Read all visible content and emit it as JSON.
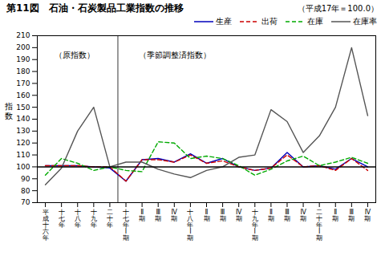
{
  "chart_data": {
    "type": "line",
    "title": "第11図　石油・石炭製品工業指数の推移",
    "subtitle": "（平成17年＝100.0）",
    "ylabel": "指\n数",
    "annotations": [
      "（原指数）",
      "（季節調整済指数）"
    ],
    "categories": [
      "平\n成\n十\n六\n年",
      "十\n七\n年",
      "十\n八\n年",
      "十\n九\n年",
      "二\n十\n年",
      "十\n七\n年\nⅠ\n期",
      "Ⅱ\n期",
      "Ⅲ\n期",
      "Ⅳ\n期",
      "十\n八\n年\nⅠ\n期",
      "Ⅱ\n期",
      "Ⅲ\n期",
      "Ⅳ\n期",
      "十\n九\n年\nⅠ\n期",
      "Ⅱ\n期",
      "Ⅲ\n期",
      "Ⅳ\n期",
      "二\n十\n年\nⅠ\n期",
      "Ⅱ\n期",
      "Ⅲ\n期",
      "Ⅳ\n期"
    ],
    "series": [
      {
        "name": "生産",
        "color": "#0000bb",
        "line_style": "solid",
        "values": [
          101,
          101,
          101,
          100,
          99,
          88,
          106,
          107,
          104,
          111,
          103,
          107,
          100,
          97,
          99,
          112,
          100,
          101,
          98,
          107,
          100
        ]
      },
      {
        "name": "出荷",
        "color": "#cc0000",
        "line_style": "dashed",
        "values": [
          101,
          101,
          101,
          100,
          100,
          88,
          106,
          106,
          104,
          110,
          103,
          105,
          100,
          97,
          99,
          110,
          100,
          101,
          97,
          107,
          97
        ]
      },
      {
        "name": "在庫",
        "color": "#00aa00",
        "line_style": "dashed",
        "values": [
          93,
          107,
          103,
          97,
          100,
          97,
          96,
          121,
          120,
          107,
          109,
          107,
          101,
          93,
          98,
          105,
          109,
          101,
          104,
          108,
          103
        ]
      },
      {
        "name": "在庫率",
        "color": "#555555",
        "line_style": "solid",
        "values": [
          85,
          99,
          130,
          150,
          100,
          104,
          104,
          98,
          94,
          91,
          97,
          100,
          108,
          110,
          148,
          138,
          112,
          126,
          150,
          200,
          143
        ]
      }
    ],
    "hline_y": 100,
    "vline_x": 4.5,
    "ylim": [
      70,
      210
    ],
    "yticks": [
      70,
      80,
      90,
      100,
      110,
      120,
      130,
      140,
      150,
      160,
      170,
      180,
      190,
      200,
      210
    ],
    "grid": false,
    "legend": "upper right"
  }
}
